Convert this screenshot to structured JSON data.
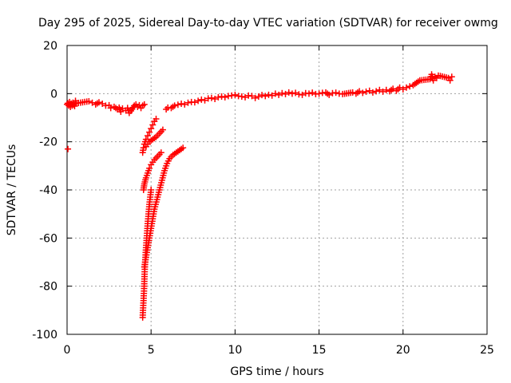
{
  "chart_data": {
    "type": "scatter",
    "title": "Day 295 of 2025, Sidereal Day-to-day VTEC variation (SDTVAR) for receiver owmg",
    "xlabel": "GPS time / hours",
    "ylabel": "SDTVAR / TECUs",
    "xlim": [
      0,
      25
    ],
    "ylim": [
      -100,
      20
    ],
    "xticks": [
      0,
      5,
      10,
      15,
      20,
      25
    ],
    "yticks": [
      -100,
      -80,
      -60,
      -40,
      -20,
      0,
      20
    ],
    "grid": true,
    "marker": "+",
    "series": [
      {
        "name": "SDTVAR",
        "color": "#ff0000",
        "points": [
          [
            0.05,
            -23.0
          ],
          [
            0.0,
            -4.5
          ],
          [
            0.05,
            -4.0
          ],
          [
            0.1,
            -5.0
          ],
          [
            0.15,
            -3.5
          ],
          [
            0.2,
            -5.5
          ],
          [
            0.25,
            -4.2
          ],
          [
            0.3,
            -5.0
          ],
          [
            0.35,
            -3.8
          ],
          [
            0.4,
            -4.6
          ],
          [
            0.45,
            -5.2
          ],
          [
            0.5,
            -3.0
          ],
          [
            0.55,
            -4.0
          ],
          [
            1.3,
            -3.2
          ],
          [
            1.5,
            -3.8
          ],
          [
            1.7,
            -4.5
          ],
          [
            1.9,
            -3.6
          ],
          [
            2.1,
            -4.2
          ],
          [
            2.3,
            -5.0
          ],
          [
            2.5,
            -4.8
          ],
          [
            2.6,
            -6.0
          ],
          [
            2.8,
            -5.5
          ],
          [
            3.0,
            -6.5
          ],
          [
            3.1,
            -5.8
          ],
          [
            3.2,
            -7.5
          ],
          [
            3.3,
            -6.2
          ],
          [
            3.5,
            -7.0
          ],
          [
            3.6,
            -6.0
          ],
          [
            3.7,
            -8.0
          ],
          [
            3.8,
            -7.2
          ],
          [
            4.0,
            -5.0
          ],
          [
            4.1,
            -4.5
          ],
          [
            4.2,
            -5.5
          ],
          [
            4.3,
            -4.8
          ],
          [
            4.4,
            -6.0
          ],
          [
            4.5,
            -5.0
          ],
          [
            4.6,
            -4.5
          ],
          [
            4.5,
            -93.0
          ],
          [
            4.52,
            -90.0
          ],
          [
            4.55,
            -86.0
          ],
          [
            4.58,
            -82.0
          ],
          [
            4.6,
            -78.0
          ],
          [
            4.62,
            -74.0
          ],
          [
            4.65,
            -70.0
          ],
          [
            4.68,
            -66.0
          ],
          [
            4.72,
            -62.0
          ],
          [
            4.76,
            -58.0
          ],
          [
            4.8,
            -54.0
          ],
          [
            4.85,
            -50.0
          ],
          [
            4.9,
            -46.0
          ],
          [
            4.95,
            -43.0
          ],
          [
            5.0,
            -40.0
          ],
          [
            4.55,
            -40.0
          ],
          [
            4.6,
            -37.5
          ],
          [
            4.7,
            -35.0
          ],
          [
            4.8,
            -33.0
          ],
          [
            4.9,
            -31.0
          ],
          [
            5.0,
            -29.5
          ],
          [
            5.2,
            -27.5
          ],
          [
            5.4,
            -26.0
          ],
          [
            5.6,
            -24.5
          ],
          [
            4.5,
            -24.5
          ],
          [
            4.55,
            -22.5
          ],
          [
            4.6,
            -21.0
          ],
          [
            4.7,
            -19.0
          ],
          [
            4.8,
            -17.5
          ],
          [
            4.9,
            -16.0
          ],
          [
            5.0,
            -14.5
          ],
          [
            5.1,
            -13.0
          ],
          [
            5.2,
            -11.5
          ],
          [
            5.3,
            -10.5
          ],
          [
            4.7,
            -22.0
          ],
          [
            4.8,
            -21.0
          ],
          [
            4.9,
            -20.0
          ],
          [
            5.1,
            -19.0
          ],
          [
            5.3,
            -18.0
          ],
          [
            5.5,
            -16.5
          ],
          [
            5.7,
            -15.0
          ],
          [
            4.6,
            -72.0
          ],
          [
            4.7,
            -68.0
          ],
          [
            4.8,
            -64.0
          ],
          [
            4.9,
            -60.0
          ],
          [
            5.0,
            -56.0
          ],
          [
            5.1,
            -52.0
          ],
          [
            5.2,
            -48.0
          ],
          [
            5.35,
            -44.0
          ],
          [
            5.5,
            -40.0
          ],
          [
            5.65,
            -36.0
          ],
          [
            5.8,
            -32.0
          ],
          [
            5.95,
            -29.0
          ],
          [
            6.1,
            -27.0
          ],
          [
            6.3,
            -25.5
          ],
          [
            6.5,
            -24.5
          ],
          [
            6.7,
            -23.5
          ],
          [
            6.9,
            -22.5
          ],
          [
            5.9,
            -6.5
          ],
          [
            6.0,
            -5.8
          ],
          [
            6.2,
            -6.0
          ],
          [
            6.4,
            -5.0
          ],
          [
            6.6,
            -4.6
          ],
          [
            6.8,
            -4.2
          ],
          [
            7.0,
            -4.5
          ],
          [
            7.2,
            -3.8
          ],
          [
            7.4,
            -3.5
          ],
          [
            7.6,
            -3.6
          ],
          [
            7.8,
            -3.0
          ],
          [
            8.0,
            -2.5
          ],
          [
            8.2,
            -2.8
          ],
          [
            8.4,
            -2.0
          ],
          [
            8.6,
            -1.8
          ],
          [
            8.8,
            -2.2
          ],
          [
            9.0,
            -1.5
          ],
          [
            9.2,
            -1.2
          ],
          [
            9.4,
            -1.5
          ],
          [
            9.6,
            -1.0
          ],
          [
            9.8,
            -0.8
          ],
          [
            10.0,
            -0.5
          ],
          [
            10.2,
            -1.0
          ],
          [
            10.4,
            -1.2
          ],
          [
            10.6,
            -1.5
          ],
          [
            10.8,
            -0.8
          ],
          [
            11.0,
            -1.0
          ],
          [
            11.2,
            -1.8
          ],
          [
            11.4,
            -1.2
          ],
          [
            11.6,
            -0.6
          ],
          [
            11.8,
            -1.0
          ],
          [
            12.0,
            -0.5
          ],
          [
            12.2,
            -0.8
          ],
          [
            12.4,
            0.0
          ],
          [
            12.6,
            -0.5
          ],
          [
            12.8,
            0.2
          ],
          [
            13.0,
            -0.2
          ],
          [
            13.2,
            0.5
          ],
          [
            13.4,
            0.0
          ],
          [
            13.6,
            0.3
          ],
          [
            13.8,
            -0.3
          ],
          [
            14.0,
            -0.5
          ],
          [
            14.2,
            0.2
          ],
          [
            14.4,
            0.0
          ],
          [
            14.6,
            0.4
          ],
          [
            14.8,
            -0.2
          ],
          [
            15.0,
            0.0
          ],
          [
            15.2,
            0.3
          ],
          [
            15.4,
            0.5
          ],
          [
            15.6,
            -0.5
          ],
          [
            15.8,
            0.2
          ],
          [
            16.0,
            0.4
          ],
          [
            16.2,
            0.0
          ],
          [
            16.4,
            -0.2
          ],
          [
            17.0,
            0.5
          ],
          [
            17.2,
            0.0
          ],
          [
            17.4,
            1.0
          ],
          [
            17.6,
            0.3
          ],
          [
            17.8,
            0.8
          ],
          [
            18.0,
            1.2
          ],
          [
            18.2,
            0.5
          ],
          [
            18.4,
            1.0
          ],
          [
            18.6,
            1.5
          ],
          [
            18.8,
            0.8
          ],
          [
            19.0,
            1.5
          ],
          [
            19.2,
            1.0
          ],
          [
            19.4,
            2.0
          ],
          [
            19.6,
            1.2
          ],
          [
            19.8,
            2.5
          ],
          [
            20.0,
            1.8
          ],
          [
            20.2,
            2.5
          ],
          [
            20.4,
            3.0
          ],
          [
            20.6,
            3.5
          ],
          [
            20.8,
            4.5
          ],
          [
            21.0,
            5.5
          ],
          [
            21.6,
            6.0
          ],
          [
            21.7,
            8.0
          ],
          [
            21.8,
            5.5
          ],
          [
            21.9,
            7.0
          ],
          [
            22.0,
            6.5
          ],
          [
            22.1,
            7.5
          ],
          [
            22.7,
            6.5
          ],
          [
            22.8,
            5.5
          ],
          [
            22.9,
            7.0
          ]
        ]
      }
    ]
  }
}
